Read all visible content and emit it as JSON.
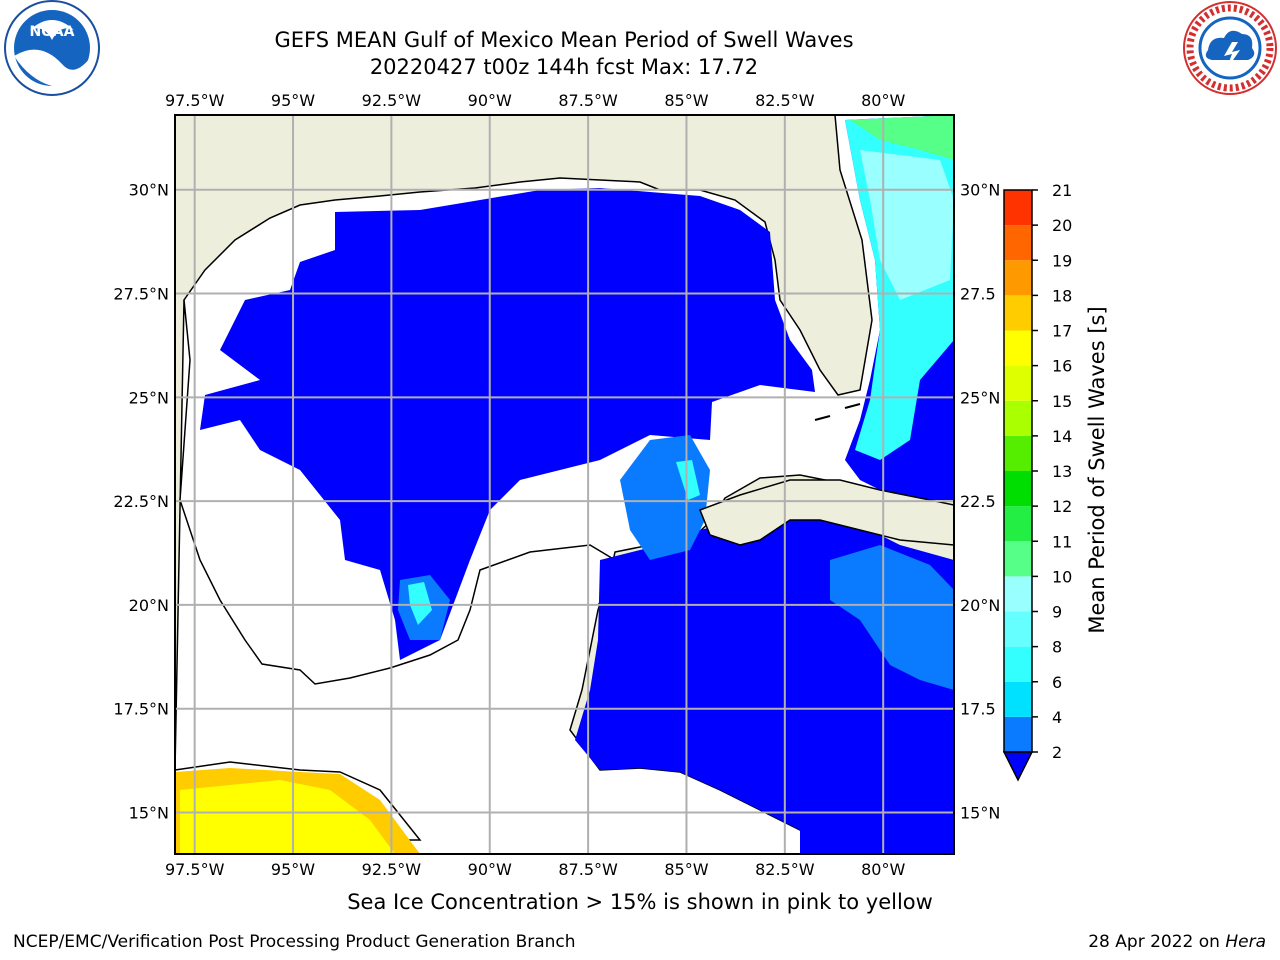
{
  "header": {
    "title_line1": "GEFS MEAN Gulf of Mexico Mean Period of Swell Waves",
    "title_line2": "20220427 t00z 144h fcst   Max: 17.72"
  },
  "logos": {
    "left": "NOAA",
    "right": "NATIONAL WEATHER SERVICE"
  },
  "map": {
    "lon_labels": [
      "97.5°W",
      "95°W",
      "92.5°W",
      "90°W",
      "87.5°W",
      "85°W",
      "82.5°W",
      "80°W"
    ],
    "lon_values": [
      -97.5,
      -95,
      -92.5,
      -90,
      -87.5,
      -85,
      -82.5,
      -80
    ],
    "lat_labels_left": [
      "30°N",
      "27.5°N",
      "25°N",
      "22.5°N",
      "20°N",
      "17.5°N",
      "15°N"
    ],
    "lat_labels_right": [
      "30°N",
      "27.5",
      "25°N",
      "22.5",
      "20°N",
      "17.5",
      "15°N"
    ],
    "lat_values": [
      30,
      27.5,
      25,
      22.5,
      20,
      17.5,
      15
    ],
    "extent": {
      "lon_min": -98,
      "lon_max": -78.2,
      "lat_min": 14,
      "lat_max": 31.8
    },
    "grid": true,
    "colors": {
      "land": "#eeeedd",
      "ocean_no_data": "#ffffff",
      "grid": "#b0b0b0"
    }
  },
  "colorbar": {
    "title": "Mean Period of Swell Waves [s]",
    "tick_labels": [
      "2",
      "4",
      "6",
      "8",
      "9",
      "10",
      "11",
      "12",
      "13",
      "14",
      "15",
      "16",
      "17",
      "18",
      "19",
      "20",
      "21"
    ],
    "colors": [
      "#0a7bff",
      "#00e0ff",
      "#33ffff",
      "#66ffff",
      "#99ffff",
      "#55ff88",
      "#22ee44",
      "#00dd00",
      "#55ee00",
      "#aaff00",
      "#ddff00",
      "#ffff00",
      "#ffcc00",
      "#ff9900",
      "#ff6600",
      "#ff3300",
      "#ff0000"
    ],
    "extend_color": "#0000ff"
  },
  "footer": {
    "note": "Sea Ice Concentration > 15% is shown in pink to yellow",
    "credit": "NCEP/EMC/Verification Post Processing Product Generation Branch",
    "date_prefix": "28 Apr 2022 on ",
    "host": "Hera"
  }
}
